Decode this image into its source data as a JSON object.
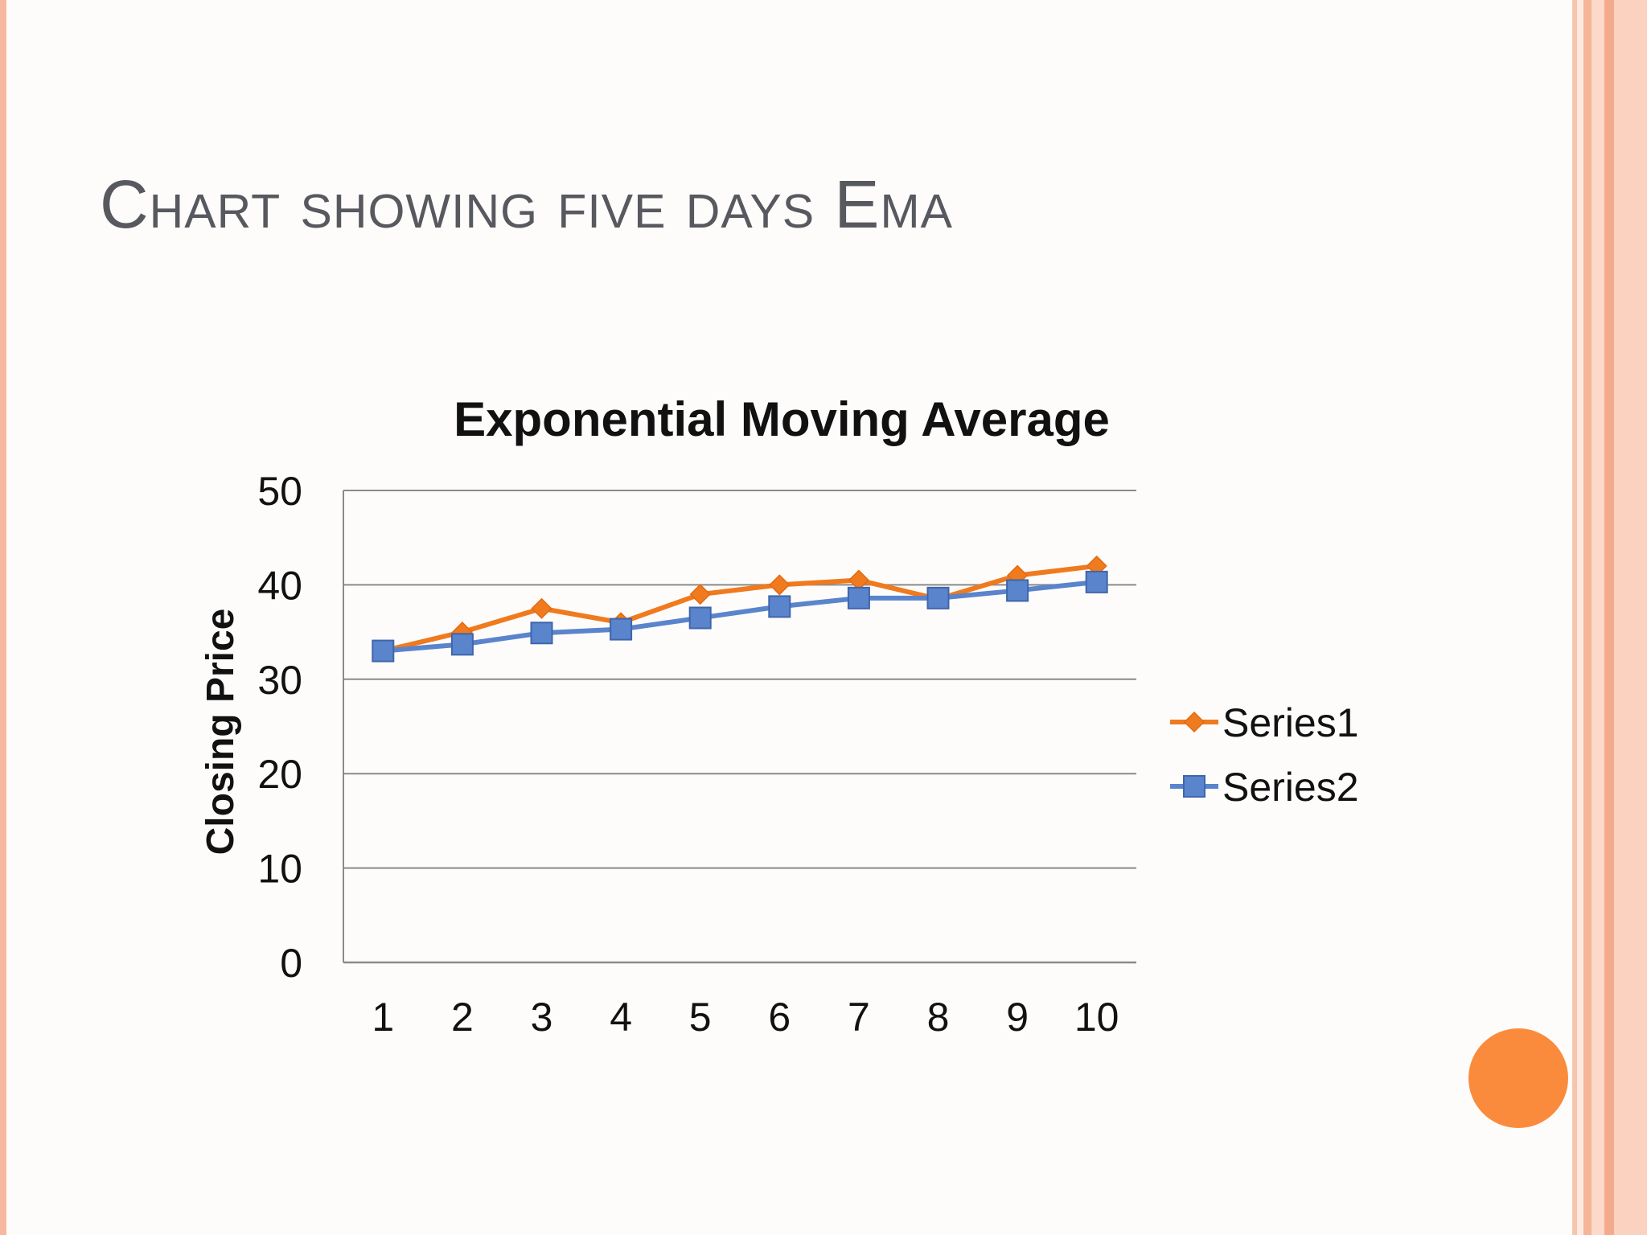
{
  "slide": {
    "title": "Chart showing five days Ema",
    "accent_color": "#fb8b3c"
  },
  "chart_data": {
    "type": "line",
    "title": "Exponential Moving Average",
    "xlabel": "",
    "ylabel": "Closing Price",
    "x": [
      "1",
      "2",
      "3",
      "4",
      "5",
      "6",
      "7",
      "8",
      "9",
      "10"
    ],
    "yticks": [
      "0",
      "10",
      "20",
      "30",
      "40",
      "50"
    ],
    "ylim": [
      0,
      50
    ],
    "grid": true,
    "legend_position": "right",
    "series": [
      {
        "name": "Series1",
        "color": "#f07a1e",
        "marker": "diamond",
        "values": [
          33,
          35,
          37.5,
          36,
          39,
          40,
          40.5,
          38.5,
          41,
          42
        ]
      },
      {
        "name": "Series2",
        "color": "#5a84cc",
        "marker": "square",
        "values": [
          33,
          33.7,
          34.9,
          35.3,
          36.5,
          37.7,
          38.6,
          38.6,
          39.4,
          40.3
        ]
      }
    ]
  }
}
